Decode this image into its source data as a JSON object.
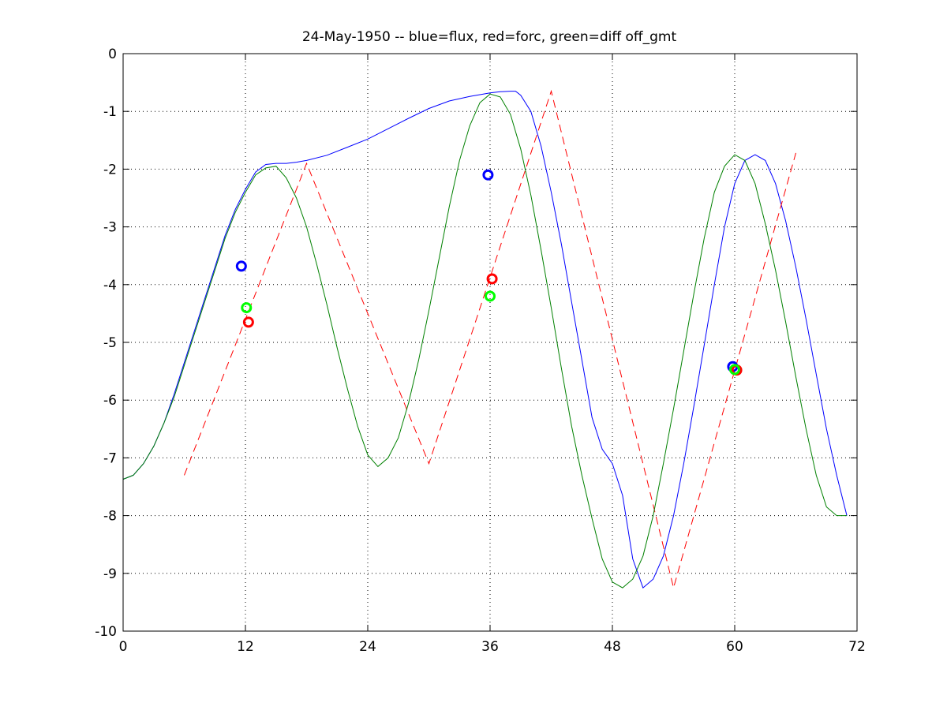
{
  "chart_data": {
    "type": "line",
    "title": "24-May-1950 -- blue=flux, red=forc, green=diff off_gmt",
    "xlabel": "",
    "ylabel": "",
    "xlim": [
      0,
      72
    ],
    "ylim": [
      -10,
      0
    ],
    "x_ticks": [
      0,
      12,
      24,
      36,
      48,
      60,
      72
    ],
    "y_ticks": [
      0,
      -1,
      -2,
      -3,
      -4,
      -5,
      -6,
      -7,
      -8,
      -9,
      -10
    ],
    "x_tick_labels": [
      "0",
      "12",
      "24",
      "36",
      "48",
      "60",
      "72"
    ],
    "y_tick_labels": [
      "0",
      "-1",
      "-2",
      "-3",
      "-4",
      "-5",
      "-6",
      "-7",
      "-8",
      "-9",
      "-10"
    ],
    "grid": true,
    "legend": "none",
    "series": [
      {
        "color": "#0000ff",
        "style": "solid",
        "x": [
          0,
          1,
          2,
          3,
          4,
          5,
          6,
          7,
          8,
          9,
          10,
          11,
          12,
          13,
          14,
          15,
          16,
          17,
          18,
          20,
          22,
          24,
          26,
          28,
          30,
          32,
          34,
          36,
          37,
          38,
          38.5,
          39,
          40,
          41,
          42,
          43,
          44,
          45,
          46,
          47,
          48,
          49,
          50,
          51,
          52,
          53,
          54,
          55,
          56,
          57,
          58,
          59,
          60,
          61,
          62,
          63,
          64,
          65,
          66,
          67,
          68,
          69,
          70,
          71
        ],
        "y": [
          -7.37,
          -7.3,
          -7.1,
          -6.8,
          -6.4,
          -5.9,
          -5.35,
          -4.8,
          -4.25,
          -3.7,
          -3.15,
          -2.7,
          -2.35,
          -2.05,
          -1.92,
          -1.9,
          -1.9,
          -1.88,
          -1.85,
          -1.76,
          -1.62,
          -1.48,
          -1.3,
          -1.12,
          -0.95,
          -0.82,
          -0.74,
          -0.68,
          -0.66,
          -0.65,
          -0.65,
          -0.72,
          -1.0,
          -1.6,
          -2.4,
          -3.3,
          -4.3,
          -5.3,
          -6.3,
          -6.85,
          -7.1,
          -7.65,
          -8.75,
          -9.25,
          -9.1,
          -8.7,
          -8.0,
          -7.1,
          -6.1,
          -5.05,
          -4.0,
          -3.0,
          -2.25,
          -1.85,
          -1.75,
          -1.85,
          -2.25,
          -2.9,
          -3.7,
          -4.6,
          -5.55,
          -6.5,
          -7.3,
          -8.0
        ]
      },
      {
        "color": "#ff0000",
        "style": "dashed",
        "x": [
          6,
          18,
          30,
          42,
          54,
          66
        ],
        "y": [
          -7.3,
          -1.9,
          -7.1,
          -0.65,
          -9.25,
          -1.72
        ]
      },
      {
        "color": "#008000",
        "style": "solid",
        "x": [
          0,
          1,
          2,
          3,
          4,
          5,
          6,
          7,
          8,
          9,
          10,
          11,
          12,
          13,
          14,
          15,
          16,
          17,
          18,
          19,
          20,
          21,
          22,
          23,
          24,
          25,
          26,
          27,
          28,
          29,
          30,
          31,
          32,
          33,
          34,
          35,
          36,
          37,
          38,
          39,
          40,
          41,
          42,
          43,
          44,
          45,
          46,
          47,
          48,
          49,
          50,
          51,
          52,
          53,
          54,
          55,
          56,
          57,
          58,
          59,
          60,
          61,
          62,
          63,
          64,
          65,
          66,
          67,
          68,
          69,
          70,
          71
        ],
        "y": [
          -7.37,
          -7.3,
          -7.1,
          -6.8,
          -6.4,
          -5.95,
          -5.4,
          -4.85,
          -4.3,
          -3.75,
          -3.2,
          -2.75,
          -2.4,
          -2.1,
          -1.98,
          -1.95,
          -2.15,
          -2.5,
          -3.0,
          -3.65,
          -4.35,
          -5.1,
          -5.8,
          -6.45,
          -6.95,
          -7.15,
          -7.0,
          -6.65,
          -6.05,
          -5.3,
          -4.45,
          -3.55,
          -2.65,
          -1.85,
          -1.25,
          -0.85,
          -0.7,
          -0.75,
          -1.05,
          -1.65,
          -2.45,
          -3.4,
          -4.4,
          -5.45,
          -6.45,
          -7.3,
          -8.05,
          -8.75,
          -9.15,
          -9.25,
          -9.1,
          -8.7,
          -8.0,
          -7.1,
          -6.15,
          -5.15,
          -4.15,
          -3.2,
          -2.4,
          -1.95,
          -1.75,
          -1.85,
          -2.25,
          -2.95,
          -3.75,
          -4.65,
          -5.6,
          -6.5,
          -7.3,
          -7.85,
          -8.0,
          -8.0
        ]
      }
    ],
    "markers": [
      {
        "color": "#0000ff",
        "x": 11.6,
        "y": -3.68
      },
      {
        "color": "#00ff00",
        "x": 12.1,
        "y": -4.4
      },
      {
        "color": "#ff0000",
        "x": 12.3,
        "y": -4.65
      },
      {
        "color": "#0000ff",
        "x": 35.8,
        "y": -2.1
      },
      {
        "color": "#ff0000",
        "x": 36.2,
        "y": -3.9
      },
      {
        "color": "#00ff00",
        "x": 36.0,
        "y": -4.2
      },
      {
        "color": "#0000ff",
        "x": 59.8,
        "y": -5.42
      },
      {
        "color": "#ff0000",
        "x": 60.2,
        "y": -5.48
      },
      {
        "color": "#00ff00",
        "x": 60.0,
        "y": -5.47
      }
    ]
  }
}
